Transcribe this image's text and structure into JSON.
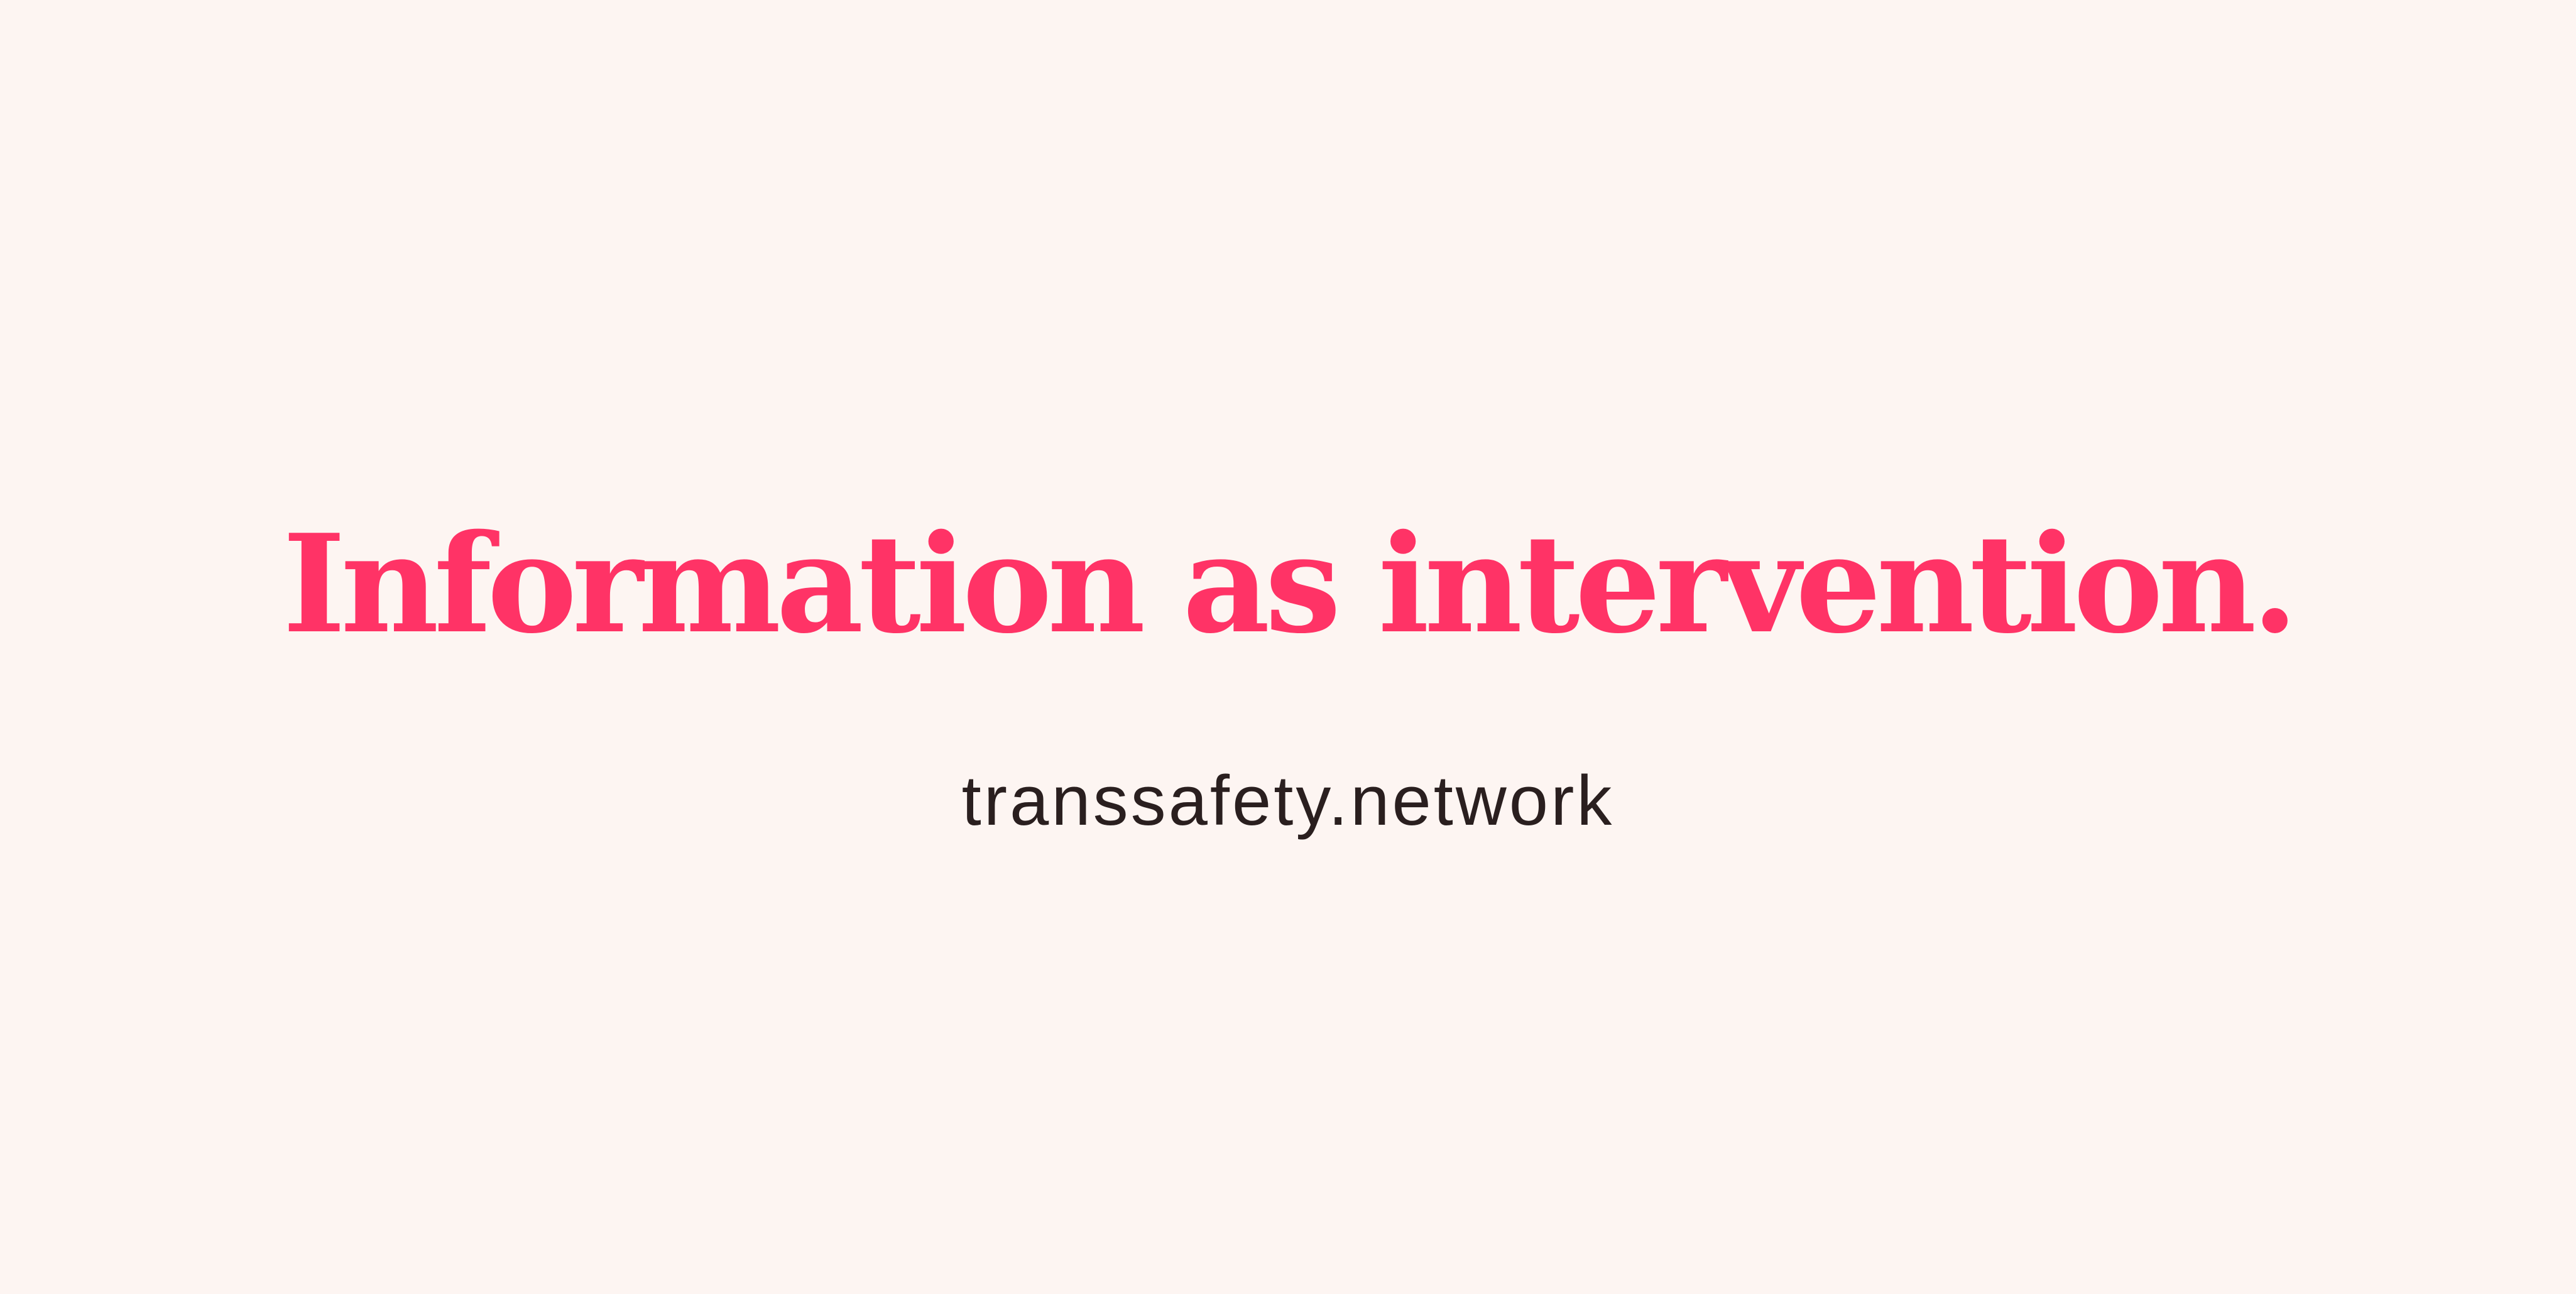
{
  "headline": {
    "text": "Information as intervention.",
    "color": "#ff3366"
  },
  "footer": {
    "url_text": "transsafety.network",
    "color": "#2a1f1f"
  },
  "background_color": "#fdf5f2"
}
